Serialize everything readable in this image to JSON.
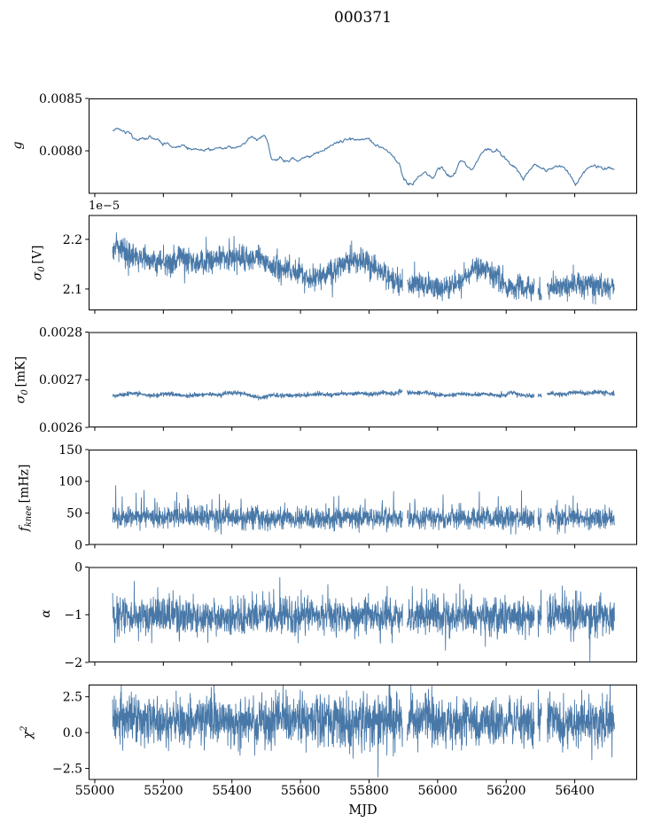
{
  "title": "000371",
  "xlabel": "MJD",
  "line_color": "#4878a8",
  "background": "#ffffff",
  "spine_color": "#000000",
  "chart_data": {
    "type": "line",
    "title": "000371",
    "x_axis": {
      "label": "MJD",
      "lim": [
        54982,
        56582
      ],
      "ticks": [
        55000,
        55200,
        55400,
        55600,
        55800,
        56000,
        56200,
        56400
      ],
      "tick_labels": [
        "55000",
        "55200",
        "55400",
        "55600",
        "55800",
        "56000",
        "56200",
        "56400"
      ]
    },
    "data_x_range": [
      55052,
      56516
    ],
    "gaps": [
      [
        55898,
        55911
      ],
      [
        56282,
        56292
      ],
      [
        56303,
        56319
      ]
    ],
    "panels": [
      {
        "id": "g",
        "ylabel": {
          "base": "g"
        },
        "ylim": [
          0.00759,
          0.0085
        ],
        "yticks": [
          0.008,
          0.0085
        ],
        "ytick_labels": [
          "0.0080",
          "0.0085"
        ],
        "series": {
          "kind": "smooth",
          "step": 2,
          "jitter": 6e-06,
          "seed": 11,
          "ignore_gaps": true,
          "x": [
            55052,
            55060,
            55070,
            55080,
            55090,
            55100,
            55112,
            55125,
            55138,
            55150,
            55162,
            55175,
            55188,
            55200,
            55212,
            55225,
            55240,
            55255,
            55270,
            55285,
            55300,
            55315,
            55330,
            55345,
            55360,
            55375,
            55390,
            55405,
            55420,
            55435,
            55448,
            55460,
            55472,
            55485,
            55495,
            55505,
            55515,
            55528,
            55540,
            55552,
            55565,
            55578,
            55590,
            55602,
            55615,
            55628,
            55642,
            55655,
            55670,
            55685,
            55700,
            55715,
            55730,
            55745,
            55760,
            55775,
            55790,
            55805,
            55820,
            55835,
            55850,
            55862,
            55875,
            55888,
            55900,
            55912,
            55925,
            55938,
            55950,
            55962,
            55975,
            55988,
            56000,
            56012,
            56025,
            56038,
            56050,
            56062,
            56075,
            56088,
            56100,
            56112,
            56125,
            56138,
            56150,
            56162,
            56175,
            56188,
            56200,
            56212,
            56225,
            56238,
            56250,
            56262,
            56275,
            56288,
            56300,
            56315,
            56330,
            56345,
            56360,
            56375,
            56390,
            56402,
            56415,
            56428,
            56440,
            56455,
            56470,
            56485,
            56500,
            56516
          ],
          "y": [
            0.0082,
            0.00822,
            0.00821,
            0.00819,
            0.00817,
            0.00818,
            0.00813,
            0.0081,
            0.00813,
            0.00811,
            0.00814,
            0.00812,
            0.00809,
            0.00806,
            0.00808,
            0.00804,
            0.00803,
            0.00806,
            0.00802,
            0.00801,
            0.00803,
            0.008,
            0.00802,
            0.008,
            0.00803,
            0.00802,
            0.00804,
            0.00802,
            0.00803,
            0.00807,
            0.00812,
            0.00814,
            0.0081,
            0.00813,
            0.00815,
            0.00808,
            0.00792,
            0.00791,
            0.00794,
            0.00791,
            0.0079,
            0.00793,
            0.0079,
            0.00792,
            0.00794,
            0.00795,
            0.00797,
            0.00799,
            0.00801,
            0.00804,
            0.00807,
            0.00809,
            0.00811,
            0.00812,
            0.00811,
            0.0081,
            0.00812,
            0.00809,
            0.00806,
            0.00803,
            0.008,
            0.00797,
            0.00793,
            0.00786,
            0.00775,
            0.00769,
            0.00768,
            0.00772,
            0.00776,
            0.00779,
            0.00777,
            0.00774,
            0.00783,
            0.00786,
            0.00778,
            0.00775,
            0.00778,
            0.00788,
            0.00791,
            0.00784,
            0.00781,
            0.00788,
            0.00797,
            0.008,
            0.00802,
            0.00799,
            0.00801,
            0.00796,
            0.00791,
            0.00788,
            0.00784,
            0.00779,
            0.00773,
            0.0078,
            0.00785,
            0.00786,
            0.00784,
            0.00781,
            0.00783,
            0.00786,
            0.00785,
            0.00781,
            0.00775,
            0.00767,
            0.00773,
            0.0078,
            0.00784,
            0.00786,
            0.00784,
            0.00782,
            0.00783,
            0.00782
          ]
        }
      },
      {
        "id": "sigma0-V",
        "ylabel": {
          "base": "σ",
          "sub": "0",
          "unit": "[V]"
        },
        "offset_text": "1e−5",
        "unit_scale": "1e-5",
        "ylim": [
          2.057,
          2.249
        ],
        "yticks": [
          2.1,
          2.2
        ],
        "ytick_labels": [
          "2.1",
          "2.2"
        ],
        "series": {
          "kind": "noisy",
          "step": 0.7,
          "seed": 1011,
          "sigma": 0.012,
          "spike_rate": 0.02,
          "spike_amp": 0.03,
          "bias": "sym",
          "clip": [
            2.06,
            2.245
          ],
          "x": [
            55052,
            55090,
            55130,
            55170,
            55210,
            55250,
            55290,
            55330,
            55370,
            55410,
            55450,
            55480,
            55510,
            55540,
            55570,
            55600,
            55630,
            55660,
            55690,
            55720,
            55750,
            55780,
            55810,
            55840,
            55870,
            55900,
            55930,
            55970,
            56010,
            56050,
            56090,
            56120,
            56150,
            56180,
            56210,
            56240,
            56270,
            56300,
            56330,
            56360,
            56400,
            56440,
            56480,
            56516
          ],
          "y": [
            2.19,
            2.176,
            2.162,
            2.156,
            2.152,
            2.166,
            2.151,
            2.156,
            2.161,
            2.163,
            2.158,
            2.161,
            2.146,
            2.141,
            2.136,
            2.128,
            2.12,
            2.126,
            2.132,
            2.147,
            2.159,
            2.156,
            2.149,
            2.133,
            2.118,
            2.108,
            2.108,
            2.106,
            2.101,
            2.106,
            2.131,
            2.143,
            2.136,
            2.116,
            2.101,
            2.106,
            2.101,
            2.098,
            2.101,
            2.106,
            2.109,
            2.113,
            2.104,
            2.106
          ]
        }
      },
      {
        "id": "sigma0-mK",
        "ylabel": {
          "base": "σ",
          "sub": "0",
          "unit": "[mK]"
        },
        "ylim": [
          0.0026,
          0.0028
        ],
        "yticks": [
          0.0026,
          0.0027,
          0.0028
        ],
        "ytick_labels": [
          "0.0026",
          "0.0027",
          "0.0028"
        ],
        "series": {
          "kind": "noisy",
          "step": 0.7,
          "seed": 2022,
          "sigma": 2.2e-06,
          "spike_rate": 0.02,
          "spike_amp": 4.8e-06,
          "bias": "sym",
          "clip": [
            0.002607,
            0.002782
          ],
          "x": [
            55052,
            55090,
            55120,
            55150,
            55180,
            55210,
            55240,
            55270,
            55300,
            55330,
            55360,
            55390,
            55420,
            55450,
            55480,
            55510,
            55540,
            55570,
            55600,
            55630,
            55660,
            55690,
            55720,
            55750,
            55780,
            55810,
            55840,
            55870,
            55900,
            55930,
            55960,
            55990,
            56020,
            56050,
            56080,
            56110,
            56140,
            56170,
            56200,
            56216,
            56240,
            56270,
            56300,
            56330,
            56360,
            56400,
            56430,
            56460,
            56490,
            56516
          ],
          "y": [
            0.002665,
            0.00267,
            0.002672,
            0.002668,
            0.002667,
            0.002671,
            0.002669,
            0.002666,
            0.002667,
            0.00267,
            0.002668,
            0.002672,
            0.002673,
            0.002668,
            0.002662,
            0.002667,
            0.002666,
            0.002668,
            0.002667,
            0.002669,
            0.00267,
            0.002668,
            0.002671,
            0.00267,
            0.002672,
            0.002669,
            0.002673,
            0.00267,
            0.002677,
            0.002672,
            0.002674,
            0.00267,
            0.002667,
            0.002669,
            0.002671,
            0.002668,
            0.00267,
            0.002667,
            0.002669,
            0.002674,
            0.002668,
            0.002666,
            0.002667,
            0.002672,
            0.002669,
            0.002675,
            0.002671,
            0.002674,
            0.002673,
            0.002671
          ]
        }
      },
      {
        "id": "fknee",
        "ylabel": {
          "base": "f",
          "sub": "knee",
          "unit": "[mHz]"
        },
        "ylim": [
          0,
          150
        ],
        "yticks": [
          0,
          50,
          100,
          150
        ],
        "ytick_labels": [
          "0",
          "50",
          "100",
          "150"
        ],
        "series": {
          "kind": "noisy",
          "step": 0.7,
          "seed": 3033,
          "sigma": 8.5,
          "spike_rate": 0.025,
          "spike_amp": 30,
          "bias": "up",
          "clip": [
            17,
            145
          ],
          "x": [
            55052,
            55300,
            55600,
            55900,
            56200,
            56516
          ],
          "y": [
            43,
            44,
            41,
            42,
            43,
            42
          ]
        }
      },
      {
        "id": "alpha",
        "ylabel": {
          "base": "α"
        },
        "ylim": [
          -2,
          0
        ],
        "yticks": [
          -2,
          -1,
          0
        ],
        "ytick_labels": [
          "−2",
          "−1",
          "0"
        ],
        "series": {
          "kind": "noisy",
          "step": 0.7,
          "seed": 4044,
          "sigma": 0.19,
          "spike_rate": 0.025,
          "spike_amp": 0.5,
          "bias": "sym",
          "clip": [
            -1.97,
            -0.12
          ],
          "x": [
            55052,
            55300,
            55600,
            55900,
            56200,
            56516
          ],
          "y": [
            -1.02,
            -1.04,
            -1.02,
            -1.05,
            -1.02,
            -1.03
          ]
        }
      },
      {
        "id": "chi2",
        "ylabel": {
          "base": "χ",
          "sup": "2"
        },
        "ylim": [
          -3.3,
          3.35
        ],
        "yticks": [
          -2.5,
          0.0,
          2.5
        ],
        "ytick_labels": [
          "−2.5",
          "0.0",
          "2.5"
        ],
        "series": {
          "kind": "noisy",
          "step": 0.7,
          "seed": 5055,
          "sigma": 0.85,
          "spike_rate": 0.03,
          "spike_amp": 1.3,
          "bias": "sym",
          "clip": [
            -3.1,
            3.3
          ],
          "x": [
            55052,
            55300,
            55600,
            55900,
            56200,
            56516
          ],
          "y": [
            0.95,
            0.8,
            0.78,
            0.92,
            0.85,
            0.8
          ]
        }
      }
    ]
  }
}
